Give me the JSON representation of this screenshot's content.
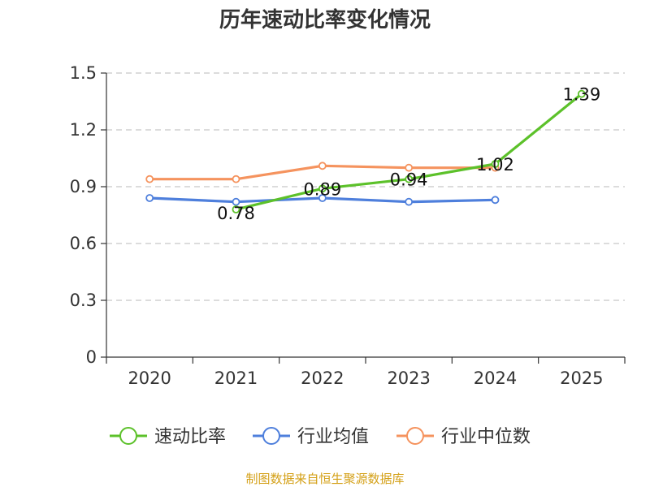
{
  "chart_data": {
    "type": "line",
    "title": "历年速动比率变化情况",
    "categories": [
      "2020",
      "2021",
      "2022",
      "2023",
      "2024",
      "2025"
    ],
    "y_ticks": [
      "0",
      "0.3",
      "0.6",
      "0.9",
      "1.2",
      "1.5"
    ],
    "ylim": [
      0,
      1.5
    ],
    "grid": true,
    "legend_position": "bottom",
    "series": [
      {
        "name": "速动比率",
        "color": "#5cc12a",
        "values": [
          null,
          0.78,
          0.89,
          0.94,
          1.02,
          1.39
        ],
        "labels": [
          "",
          "0.78",
          "0.89",
          "0.94",
          "1.02",
          "1.39"
        ]
      },
      {
        "name": "行业均值",
        "color": "#4e7fdc",
        "values": [
          0.84,
          0.82,
          0.84,
          0.82,
          0.83,
          null
        ]
      },
      {
        "name": "行业中位数",
        "color": "#f5935e",
        "values": [
          0.94,
          0.94,
          1.01,
          1.0,
          1.0,
          null
        ]
      }
    ]
  },
  "source": "制图数据来自恒生聚源数据库"
}
